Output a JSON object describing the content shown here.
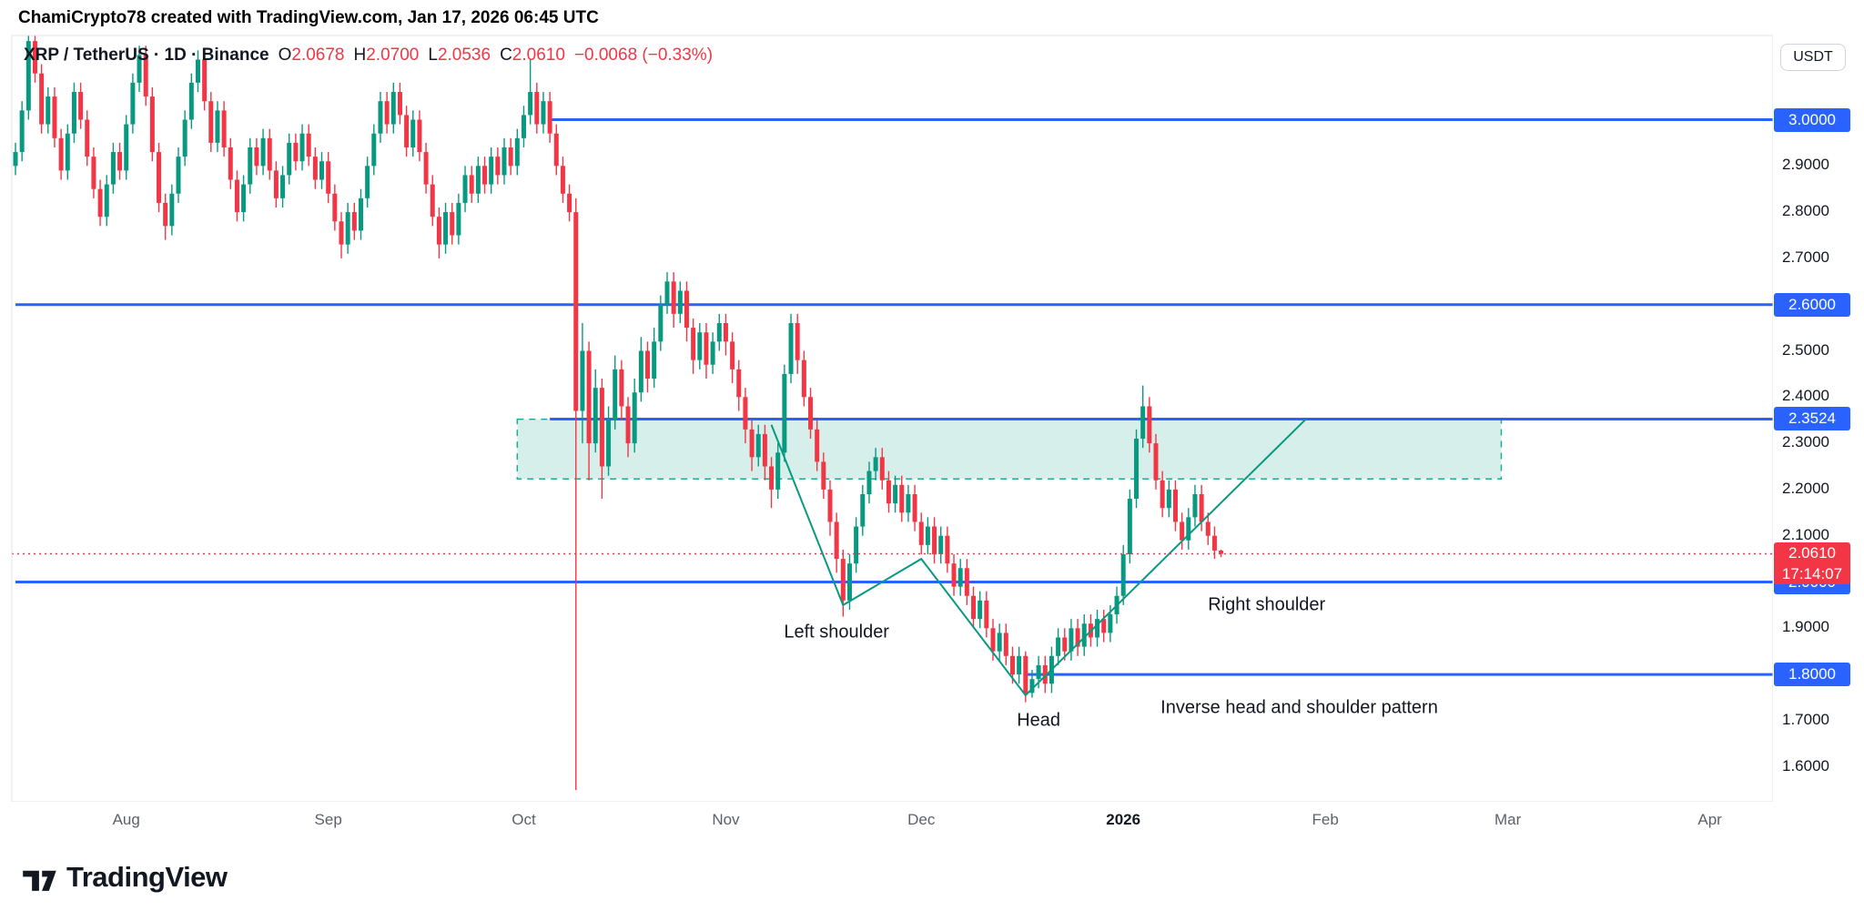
{
  "header": {
    "credit": "ChamiCrypto78 created with TradingView.com, Jan 17, 2026 06:45 UTC"
  },
  "toolbar": {
    "currency_button": "USDT"
  },
  "legend": {
    "title": "XRP / TetherUS · 1D · Binance",
    "ohlc": [
      {
        "label": "O",
        "value": "2.0678"
      },
      {
        "label": "H",
        "value": "2.0700"
      },
      {
        "label": "L",
        "value": "2.0536"
      },
      {
        "label": "C",
        "value": "2.0610"
      }
    ],
    "change": "−0.0068 (−0.33%)"
  },
  "footer": {
    "brand": "TradingView"
  },
  "chart_data": {
    "type": "candlestick",
    "title": "XRP / TetherUS · 1D · Binance",
    "interval": "1D",
    "exchange": "Binance",
    "grid": false,
    "ylim": [
      1.53,
      3.17
    ],
    "colors": {
      "up": "#089981",
      "down": "#F23645",
      "level": "#2962FF",
      "pattern": "#089981",
      "zone_fill": "rgba(8,153,129,0.16)",
      "zone_border": "#22ab94",
      "last_price": "#F23645",
      "border": "#e0e3eb"
    },
    "price_ticks": [
      {
        "value": 2.9,
        "label": "2.9000"
      },
      {
        "value": 2.8,
        "label": "2.8000"
      },
      {
        "value": 2.7,
        "label": "2.7000"
      },
      {
        "value": 2.5,
        "label": "2.5000"
      },
      {
        "value": 2.4,
        "label": "2.4000"
      },
      {
        "value": 2.3,
        "label": "2.3000"
      },
      {
        "value": 2.2,
        "label": "2.2000"
      },
      {
        "value": 2.1,
        "label": "2.1000"
      },
      {
        "value": 1.9,
        "label": "1.9000"
      },
      {
        "value": 1.7,
        "label": "1.7000"
      },
      {
        "value": 1.6,
        "label": "1.6000"
      }
    ],
    "levels": [
      {
        "value": 3.0,
        "label": "3.0000",
        "from_index": 82
      },
      {
        "value": 2.6,
        "label": "2.6000",
        "from_index": 0
      },
      {
        "value": 2.3524,
        "label": "2.3524",
        "from_index": 82
      },
      {
        "value": 2.0,
        "label": "2.0000",
        "from_index": 0
      },
      {
        "value": 1.8,
        "label": "1.8000",
        "from_index": 155
      }
    ],
    "last": {
      "price": 2.061,
      "label": "2.0610",
      "countdown": "17:14:07"
    },
    "zone": {
      "top": 2.352,
      "bottom": 2.223,
      "from_index": 77,
      "to_index": 228
    },
    "pattern": {
      "points": [
        [
          116,
          2.34
        ],
        [
          127,
          1.95
        ],
        [
          139,
          2.05
        ],
        [
          155,
          1.755
        ],
        [
          198,
          2.352
        ]
      ],
      "annotations": [
        {
          "text": "Left shoulder",
          "index": 126,
          "price": 1.89
        },
        {
          "text": "Head",
          "index": 157,
          "price": 1.7
        },
        {
          "text": "Right shoulder",
          "index": 192,
          "price": 1.95
        },
        {
          "text": "Inverse head and shoulder pattern",
          "index": 197,
          "price": 1.728
        }
      ]
    },
    "time_ticks": [
      {
        "label": "Aug",
        "index": 17
      },
      {
        "label": "Sep",
        "index": 48
      },
      {
        "label": "Oct",
        "index": 78
      },
      {
        "label": "Nov",
        "index": 109
      },
      {
        "label": "Dec",
        "index": 139
      },
      {
        "label": "2026",
        "index": 170,
        "strong": true
      },
      {
        "label": "Feb",
        "index": 201
      },
      {
        "label": "Mar",
        "index": 229
      },
      {
        "label": "Apr",
        "index": 260
      }
    ],
    "ohlc_format": [
      "open",
      "high",
      "low",
      "close"
    ],
    "candles": [
      [
        2.9,
        2.95,
        2.88,
        2.93
      ],
      [
        2.93,
        3.04,
        2.91,
        3.02
      ],
      [
        3.02,
        3.19,
        3.0,
        3.17
      ],
      [
        3.17,
        3.19,
        3.08,
        3.1
      ],
      [
        3.1,
        3.12,
        2.97,
        2.99
      ],
      [
        2.99,
        3.07,
        2.97,
        3.05
      ],
      [
        3.05,
        3.07,
        2.94,
        2.96
      ],
      [
        2.96,
        2.98,
        2.87,
        2.89
      ],
      [
        2.89,
        2.99,
        2.87,
        2.97
      ],
      [
        2.97,
        3.08,
        2.95,
        3.06
      ],
      [
        3.06,
        3.08,
        2.98,
        3.0
      ],
      [
        3.0,
        3.02,
        2.9,
        2.92
      ],
      [
        2.92,
        2.94,
        2.83,
        2.85
      ],
      [
        2.85,
        2.87,
        2.77,
        2.79
      ],
      [
        2.79,
        2.88,
        2.77,
        2.86
      ],
      [
        2.86,
        2.95,
        2.84,
        2.93
      ],
      [
        2.93,
        2.95,
        2.87,
        2.89
      ],
      [
        2.89,
        3.01,
        2.87,
        2.99
      ],
      [
        2.99,
        3.1,
        2.97,
        3.08
      ],
      [
        3.08,
        3.16,
        3.06,
        3.14
      ],
      [
        3.14,
        3.16,
        3.03,
        3.05
      ],
      [
        3.05,
        3.07,
        2.91,
        2.93
      ],
      [
        2.93,
        2.95,
        2.8,
        2.82
      ],
      [
        2.82,
        2.84,
        2.74,
        2.77
      ],
      [
        2.77,
        2.86,
        2.75,
        2.84
      ],
      [
        2.84,
        2.94,
        2.82,
        2.92
      ],
      [
        2.92,
        3.02,
        2.9,
        3.0
      ],
      [
        3.0,
        3.1,
        2.98,
        3.08
      ],
      [
        3.08,
        3.15,
        3.06,
        3.13
      ],
      [
        3.13,
        3.15,
        3.02,
        3.04
      ],
      [
        3.04,
        3.06,
        2.93,
        2.95
      ],
      [
        2.95,
        3.04,
        2.93,
        3.02
      ],
      [
        3.02,
        3.04,
        2.92,
        2.94
      ],
      [
        2.94,
        2.96,
        2.85,
        2.87
      ],
      [
        2.87,
        2.89,
        2.78,
        2.8
      ],
      [
        2.8,
        2.88,
        2.78,
        2.86
      ],
      [
        2.86,
        2.96,
        2.84,
        2.94
      ],
      [
        2.94,
        2.96,
        2.88,
        2.9
      ],
      [
        2.9,
        2.98,
        2.88,
        2.96
      ],
      [
        2.96,
        2.98,
        2.87,
        2.89
      ],
      [
        2.89,
        2.91,
        2.81,
        2.83
      ],
      [
        2.83,
        2.9,
        2.81,
        2.88
      ],
      [
        2.88,
        2.97,
        2.86,
        2.95
      ],
      [
        2.95,
        2.97,
        2.89,
        2.91
      ],
      [
        2.91,
        2.99,
        2.89,
        2.97
      ],
      [
        2.97,
        2.99,
        2.9,
        2.92
      ],
      [
        2.92,
        2.94,
        2.85,
        2.87
      ],
      [
        2.87,
        2.93,
        2.85,
        2.91
      ],
      [
        2.91,
        2.93,
        2.82,
        2.84
      ],
      [
        2.84,
        2.86,
        2.76,
        2.78
      ],
      [
        2.78,
        2.8,
        2.7,
        2.73
      ],
      [
        2.73,
        2.82,
        2.71,
        2.8
      ],
      [
        2.8,
        2.82,
        2.74,
        2.76
      ],
      [
        2.76,
        2.85,
        2.74,
        2.83
      ],
      [
        2.83,
        2.92,
        2.81,
        2.9
      ],
      [
        2.9,
        2.99,
        2.88,
        2.97
      ],
      [
        2.97,
        3.06,
        2.95,
        3.04
      ],
      [
        3.04,
        3.06,
        2.97,
        2.99
      ],
      [
        2.99,
        3.08,
        2.97,
        3.06
      ],
      [
        3.06,
        3.08,
        2.99,
        3.01
      ],
      [
        3.01,
        3.03,
        2.92,
        2.94
      ],
      [
        2.94,
        3.02,
        2.92,
        3.0
      ],
      [
        3.0,
        3.02,
        2.91,
        2.93
      ],
      [
        2.93,
        2.95,
        2.84,
        2.86
      ],
      [
        2.86,
        2.88,
        2.77,
        2.79
      ],
      [
        2.79,
        2.81,
        2.7,
        2.73
      ],
      [
        2.73,
        2.82,
        2.71,
        2.8
      ],
      [
        2.8,
        2.82,
        2.73,
        2.75
      ],
      [
        2.75,
        2.84,
        2.73,
        2.82
      ],
      [
        2.82,
        2.9,
        2.8,
        2.88
      ],
      [
        2.88,
        2.9,
        2.82,
        2.84
      ],
      [
        2.84,
        2.92,
        2.82,
        2.9
      ],
      [
        2.9,
        2.92,
        2.84,
        2.86
      ],
      [
        2.86,
        2.94,
        2.84,
        2.92
      ],
      [
        2.92,
        2.94,
        2.86,
        2.88
      ],
      [
        2.88,
        2.96,
        2.86,
        2.94
      ],
      [
        2.94,
        2.96,
        2.88,
        2.9
      ],
      [
        2.9,
        2.98,
        2.88,
        2.96
      ],
      [
        2.96,
        3.03,
        2.94,
        3.01
      ],
      [
        3.01,
        3.13,
        2.99,
        3.06
      ],
      [
        3.06,
        3.08,
        2.97,
        2.99
      ],
      [
        2.99,
        3.06,
        2.97,
        3.04
      ],
      [
        3.04,
        3.06,
        2.95,
        2.97
      ],
      [
        2.97,
        2.99,
        2.88,
        2.9
      ],
      [
        2.9,
        2.92,
        2.82,
        2.84
      ],
      [
        2.84,
        2.86,
        2.78,
        2.8
      ],
      [
        2.8,
        2.83,
        1.55,
        2.37
      ],
      [
        2.37,
        2.56,
        2.3,
        2.5
      ],
      [
        2.5,
        2.52,
        2.22,
        2.3
      ],
      [
        2.3,
        2.46,
        2.28,
        2.42
      ],
      [
        2.42,
        2.44,
        2.18,
        2.25
      ],
      [
        2.25,
        2.38,
        2.23,
        2.35
      ],
      [
        2.35,
        2.49,
        2.33,
        2.46
      ],
      [
        2.46,
        2.48,
        2.35,
        2.38
      ],
      [
        2.38,
        2.4,
        2.27,
        2.3
      ],
      [
        2.3,
        2.44,
        2.28,
        2.41
      ],
      [
        2.41,
        2.53,
        2.39,
        2.5
      ],
      [
        2.5,
        2.52,
        2.41,
        2.44
      ],
      [
        2.44,
        2.55,
        2.42,
        2.52
      ],
      [
        2.52,
        2.62,
        2.5,
        2.6
      ],
      [
        2.6,
        2.67,
        2.58,
        2.65
      ],
      [
        2.65,
        2.67,
        2.55,
        2.58
      ],
      [
        2.58,
        2.65,
        2.56,
        2.63
      ],
      [
        2.63,
        2.65,
        2.52,
        2.55
      ],
      [
        2.55,
        2.57,
        2.45,
        2.48
      ],
      [
        2.48,
        2.56,
        2.46,
        2.54
      ],
      [
        2.54,
        2.56,
        2.44,
        2.47
      ],
      [
        2.47,
        2.54,
        2.45,
        2.52
      ],
      [
        2.52,
        2.58,
        2.5,
        2.56
      ],
      [
        2.56,
        2.58,
        2.49,
        2.52
      ],
      [
        2.52,
        2.54,
        2.43,
        2.46
      ],
      [
        2.46,
        2.48,
        2.37,
        2.4
      ],
      [
        2.4,
        2.42,
        2.3,
        2.33
      ],
      [
        2.33,
        2.35,
        2.24,
        2.27
      ],
      [
        2.27,
        2.34,
        2.25,
        2.32
      ],
      [
        2.32,
        2.34,
        2.22,
        2.25
      ],
      [
        2.25,
        2.27,
        2.16,
        2.2
      ],
      [
        2.2,
        2.3,
        2.18,
        2.28
      ],
      [
        2.28,
        2.47,
        2.26,
        2.45
      ],
      [
        2.45,
        2.58,
        2.43,
        2.56
      ],
      [
        2.56,
        2.58,
        2.45,
        2.48
      ],
      [
        2.48,
        2.5,
        2.38,
        2.4
      ],
      [
        2.4,
        2.42,
        2.31,
        2.33
      ],
      [
        2.33,
        2.35,
        2.24,
        2.26
      ],
      [
        2.26,
        2.28,
        2.18,
        2.2
      ],
      [
        2.2,
        2.22,
        2.1,
        2.13
      ],
      [
        2.13,
        2.15,
        2.02,
        2.05
      ],
      [
        2.05,
        2.07,
        1.925,
        1.96
      ],
      [
        1.96,
        2.06,
        1.94,
        2.04
      ],
      [
        2.04,
        2.14,
        2.02,
        2.12
      ],
      [
        2.12,
        2.21,
        2.1,
        2.19
      ],
      [
        2.19,
        2.26,
        2.17,
        2.24
      ],
      [
        2.24,
        2.29,
        2.22,
        2.27
      ],
      [
        2.27,
        2.29,
        2.2,
        2.22
      ],
      [
        2.22,
        2.24,
        2.15,
        2.17
      ],
      [
        2.17,
        2.23,
        2.15,
        2.21
      ],
      [
        2.21,
        2.23,
        2.13,
        2.15
      ],
      [
        2.15,
        2.21,
        2.13,
        2.19
      ],
      [
        2.19,
        2.21,
        2.11,
        2.13
      ],
      [
        2.13,
        2.15,
        2.06,
        2.08
      ],
      [
        2.08,
        2.14,
        2.06,
        2.12
      ],
      [
        2.12,
        2.14,
        2.04,
        2.06
      ],
      [
        2.06,
        2.12,
        2.04,
        2.1
      ],
      [
        2.1,
        2.12,
        2.02,
        2.04
      ],
      [
        2.04,
        2.06,
        1.97,
        1.99
      ],
      [
        1.99,
        2.05,
        1.97,
        2.03
      ],
      [
        2.03,
        2.05,
        1.95,
        1.97
      ],
      [
        1.97,
        1.99,
        1.9,
        1.92
      ],
      [
        1.92,
        1.98,
        1.9,
        1.96
      ],
      [
        1.96,
        1.98,
        1.88,
        1.9
      ],
      [
        1.9,
        1.92,
        1.83,
        1.85
      ],
      [
        1.85,
        1.91,
        1.83,
        1.89
      ],
      [
        1.89,
        1.91,
        1.82,
        1.84
      ],
      [
        1.84,
        1.86,
        1.78,
        1.8
      ],
      [
        1.8,
        1.86,
        1.78,
        1.84
      ],
      [
        1.84,
        1.85,
        1.74,
        1.76
      ],
      [
        1.76,
        1.81,
        1.75,
        1.79
      ],
      [
        1.79,
        1.84,
        1.77,
        1.82
      ],
      [
        1.82,
        1.84,
        1.76,
        1.78
      ],
      [
        1.78,
        1.86,
        1.76,
        1.84
      ],
      [
        1.84,
        1.9,
        1.82,
        1.88
      ],
      [
        1.88,
        1.9,
        1.83,
        1.85
      ],
      [
        1.85,
        1.92,
        1.83,
        1.9
      ],
      [
        1.9,
        1.92,
        1.84,
        1.86
      ],
      [
        1.86,
        1.93,
        1.84,
        1.91
      ],
      [
        1.91,
        1.93,
        1.86,
        1.88
      ],
      [
        1.88,
        1.94,
        1.86,
        1.92
      ],
      [
        1.92,
        1.94,
        1.87,
        1.89
      ],
      [
        1.89,
        1.95,
        1.87,
        1.93
      ],
      [
        1.93,
        1.99,
        1.91,
        1.97
      ],
      [
        1.97,
        2.08,
        1.95,
        2.06
      ],
      [
        2.06,
        2.2,
        2.04,
        2.18
      ],
      [
        2.18,
        2.33,
        2.16,
        2.31
      ],
      [
        2.31,
        2.425,
        2.29,
        2.38
      ],
      [
        2.38,
        2.4,
        2.28,
        2.3
      ],
      [
        2.3,
        2.32,
        2.2,
        2.22
      ],
      [
        2.22,
        2.24,
        2.14,
        2.16
      ],
      [
        2.16,
        2.22,
        2.14,
        2.2
      ],
      [
        2.2,
        2.22,
        2.11,
        2.13
      ],
      [
        2.13,
        2.15,
        2.07,
        2.09
      ],
      [
        2.09,
        2.16,
        2.07,
        2.14
      ],
      [
        2.14,
        2.21,
        2.12,
        2.19
      ],
      [
        2.19,
        2.21,
        2.11,
        2.13
      ],
      [
        2.13,
        2.15,
        2.08,
        2.1
      ],
      [
        2.1,
        2.12,
        2.05,
        2.068
      ],
      [
        2.0678,
        2.07,
        2.0536,
        2.061
      ]
    ]
  }
}
